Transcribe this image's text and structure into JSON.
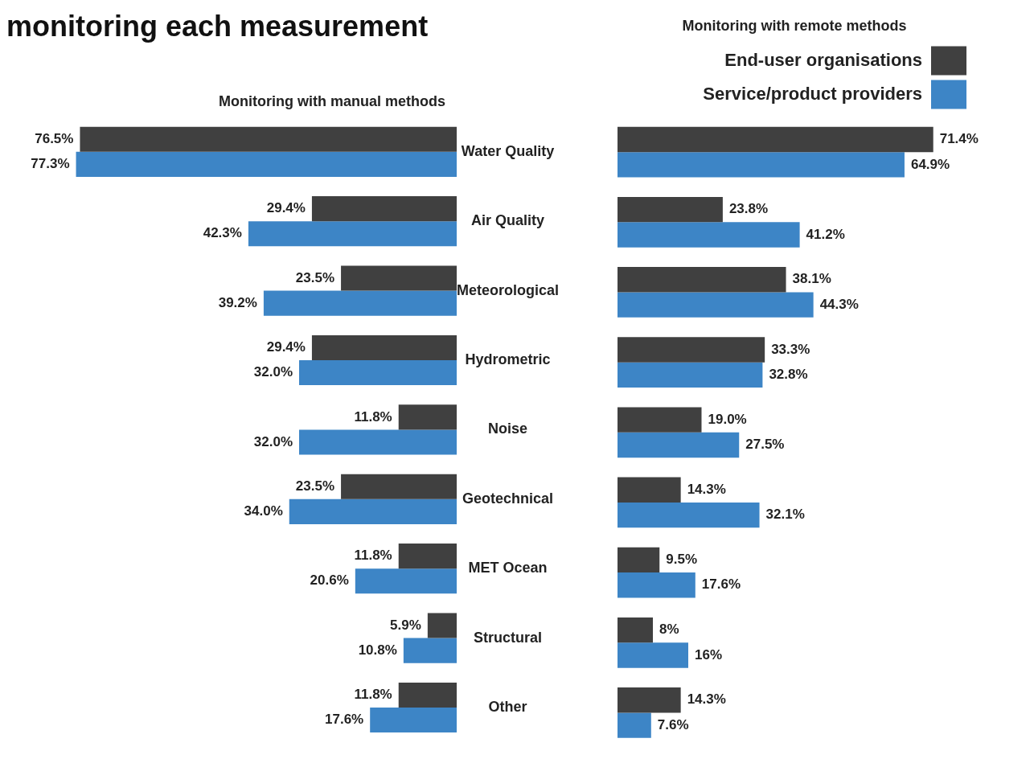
{
  "chart_data": [
    {
      "type": "bar",
      "title": "monitoring each measurement",
      "subtitle": "Monitoring with manual methods",
      "orientation": "horizontal",
      "categories": [
        "Water Quality",
        "Air Quality",
        "Meteorological",
        "Hydrometric",
        "Noise",
        "Geotechnical",
        "MET Ocean",
        "Structural",
        "Other"
      ],
      "tick_labels": "y",
      "legend": false,
      "grid": false,
      "series": [
        {
          "color": "#404040",
          "values": [
            76.5,
            29.4,
            23.5,
            29.4,
            11.8,
            23.5,
            11.8,
            5.9,
            11.8
          ],
          "value_labels": [
            "76.5%",
            "29.4%",
            "23.5%",
            "29.4%",
            "11.8%",
            "23.5%",
            "11.8%",
            "5.9%",
            "11.8%"
          ]
        },
        {
          "color": "#3d85c6",
          "values": [
            77.3,
            42.3,
            39.2,
            32.0,
            32.0,
            34.0,
            20.6,
            10.8,
            17.6
          ],
          "value_labels": [
            "77.3%",
            "42.3%",
            "39.2%",
            "32.0%",
            "32.0%",
            "34.0%",
            "20.6%",
            "10.8%",
            "17.6%"
          ]
        }
      ]
    },
    {
      "type": "bar",
      "subtitle": "Monitoring with remote methods",
      "orientation": "horizontal",
      "categories": [
        null,
        null,
        null,
        null,
        null,
        null,
        null,
        null,
        null
      ],
      "tick_labels": false,
      "legend": "top right",
      "grid": false,
      "series": [
        {
          "name": "End-user organisations",
          "color": "#404040",
          "values": [
            71.4,
            23.8,
            38.1,
            33.3,
            19.0,
            14.3,
            9.5,
            8,
            14.3
          ],
          "value_labels": [
            "71.4%",
            "23.8%",
            "38.1%",
            "33.3%",
            "19.0%",
            "14.3%",
            "9.5%",
            "8%",
            "14.3%"
          ]
        },
        {
          "name": "Service/product providers",
          "color": "#3d85c6",
          "values": [
            64.9,
            41.2,
            44.3,
            32.8,
            27.5,
            32.1,
            17.6,
            16,
            7.6
          ],
          "value_labels": [
            "64.9%",
            "41.2%",
            "44.3%",
            "32.8%",
            "27.5%",
            "32.1%",
            "17.6%",
            "16%",
            "7.6%"
          ]
        }
      ]
    }
  ]
}
